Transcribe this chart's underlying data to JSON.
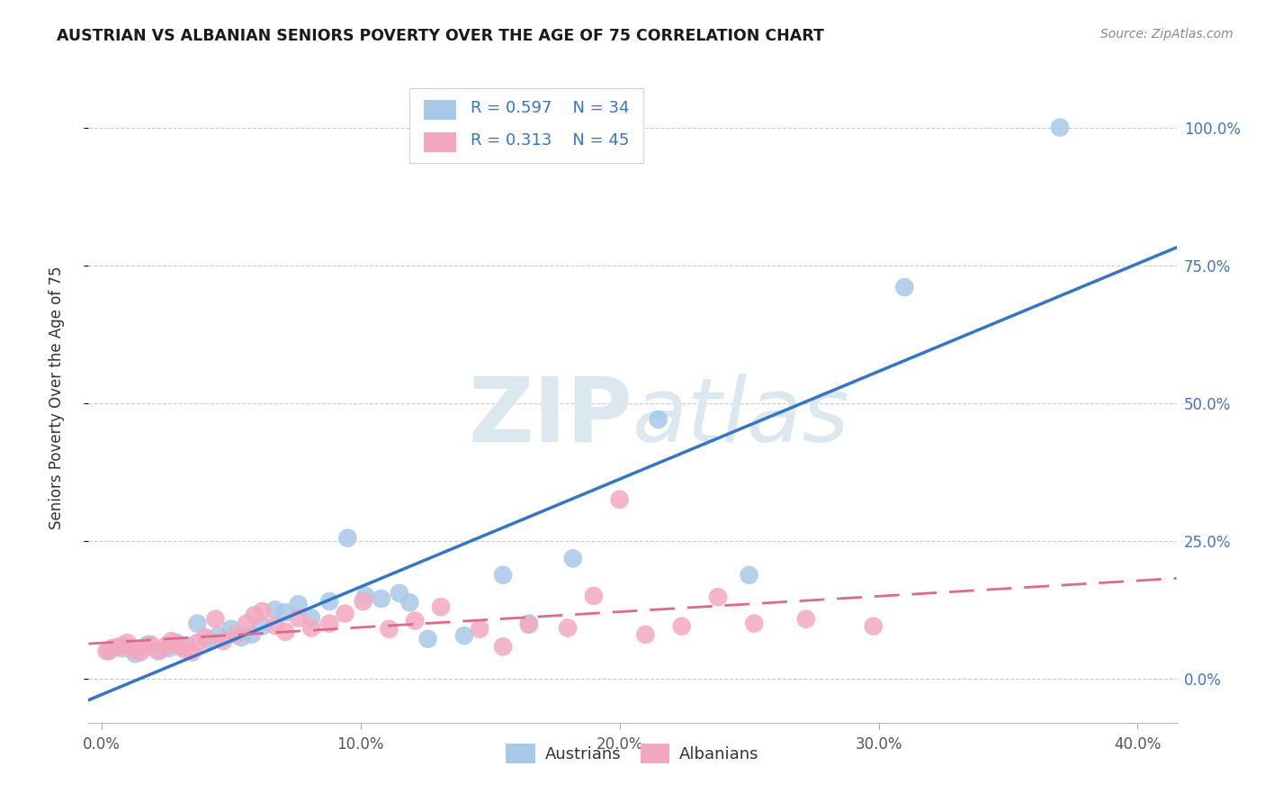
{
  "title": "AUSTRIAN VS ALBANIAN SENIORS POVERTY OVER THE AGE OF 75 CORRELATION CHART",
  "source": "Source: ZipAtlas.com",
  "ylabel": "Seniors Poverty Over the Age of 75",
  "xtick_vals": [
    0.0,
    0.1,
    0.2,
    0.3,
    0.4
  ],
  "xtick_labels": [
    "0.0%",
    "10.0%",
    "20.0%",
    "30.0%",
    "40.0%"
  ],
  "ytick_vals": [
    0.0,
    0.25,
    0.5,
    0.75,
    1.0
  ],
  "ytick_labels": [
    "0.0%",
    "25.0%",
    "50.0%",
    "75.0%",
    "100.0%"
  ],
  "xlim": [
    -0.005,
    0.415
  ],
  "ylim": [
    -0.08,
    1.1
  ],
  "austrian_dot_color": "#a8c8e8",
  "albanian_dot_color": "#f4a8c0",
  "trend_blue": "#3575c8",
  "trend_pink": "#e06888",
  "watermark_color": "#dce8f0",
  "bg_color": "#ffffff",
  "title_color": "#1a1a1a",
  "source_color": "#888888",
  "grid_color": "#cccccc",
  "right_tick_color": "#4472c4",
  "legend_box_facecolor": "#f0f4ff",
  "legend_box_edgecolor": "#c8d4e8",
  "austrians_x": [
    0.003,
    0.008,
    0.013,
    0.018,
    0.022,
    0.026,
    0.029,
    0.033,
    0.037,
    0.041,
    0.045,
    0.05,
    0.054,
    0.058,
    0.062,
    0.067,
    0.071,
    0.076,
    0.081,
    0.088,
    0.095,
    0.102,
    0.108,
    0.115,
    0.119,
    0.126,
    0.14,
    0.155,
    0.165,
    0.182,
    0.215,
    0.25,
    0.31,
    0.37
  ],
  "austrians_y": [
    0.05,
    0.055,
    0.045,
    0.062,
    0.05,
    0.055,
    0.065,
    0.06,
    0.1,
    0.07,
    0.078,
    0.09,
    0.075,
    0.08,
    0.095,
    0.125,
    0.12,
    0.135,
    0.11,
    0.14,
    0.255,
    0.15,
    0.145,
    0.155,
    0.138,
    0.072,
    0.078,
    0.188,
    0.1,
    0.218,
    0.47,
    0.188,
    0.71,
    1.0
  ],
  "albanians_x": [
    0.002,
    0.004,
    0.006,
    0.008,
    0.01,
    0.012,
    0.015,
    0.017,
    0.019,
    0.022,
    0.025,
    0.027,
    0.03,
    0.032,
    0.035,
    0.037,
    0.04,
    0.044,
    0.047,
    0.052,
    0.056,
    0.059,
    0.062,
    0.067,
    0.071,
    0.076,
    0.081,
    0.088,
    0.094,
    0.101,
    0.111,
    0.121,
    0.131,
    0.146,
    0.155,
    0.165,
    0.18,
    0.19,
    0.2,
    0.21,
    0.224,
    0.238,
    0.252,
    0.272,
    0.298
  ],
  "albanians_y": [
    0.05,
    0.055,
    0.057,
    0.06,
    0.065,
    0.052,
    0.048,
    0.056,
    0.062,
    0.05,
    0.06,
    0.068,
    0.058,
    0.053,
    0.048,
    0.065,
    0.075,
    0.108,
    0.068,
    0.08,
    0.1,
    0.115,
    0.122,
    0.096,
    0.085,
    0.11,
    0.092,
    0.1,
    0.118,
    0.14,
    0.09,
    0.105,
    0.13,
    0.09,
    0.058,
    0.098,
    0.092,
    0.15,
    0.325,
    0.08,
    0.095,
    0.148,
    0.1,
    0.108,
    0.095
  ]
}
